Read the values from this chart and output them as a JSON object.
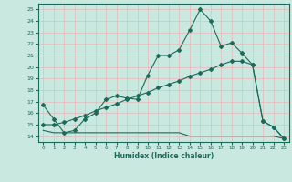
{
  "xlabel": "Humidex (Indice chaleur)",
  "xlim": [
    -0.5,
    23.5
  ],
  "ylim": [
    13.5,
    25.5
  ],
  "xticks": [
    0,
    1,
    2,
    3,
    4,
    5,
    6,
    7,
    8,
    9,
    10,
    11,
    12,
    13,
    14,
    15,
    16,
    17,
    18,
    19,
    20,
    21,
    22,
    23
  ],
  "yticks": [
    14,
    15,
    16,
    17,
    18,
    19,
    20,
    21,
    22,
    23,
    24,
    25
  ],
  "bg_color": "#c8e8e0",
  "grid_color": "#e8b8b8",
  "line_color": "#1a6b5a",
  "line1_x": [
    0,
    1,
    2,
    3,
    4,
    5,
    6,
    7,
    8,
    9,
    10,
    11,
    12,
    13,
    14,
    15,
    16,
    17,
    18,
    19,
    20,
    21,
    22,
    23
  ],
  "line1_y": [
    16.7,
    15.5,
    14.3,
    14.5,
    15.5,
    16.0,
    17.2,
    17.5,
    17.3,
    17.2,
    19.3,
    21.0,
    21.0,
    21.5,
    23.2,
    25.0,
    24.0,
    21.8,
    22.1,
    21.2,
    20.2,
    15.3,
    14.8,
    13.8
  ],
  "line2_x": [
    0,
    1,
    2,
    3,
    4,
    5,
    6,
    7,
    8,
    9,
    10,
    11,
    12,
    13,
    14,
    15,
    16,
    17,
    18,
    19,
    20,
    21,
    22,
    23
  ],
  "line2_y": [
    15.0,
    15.0,
    15.2,
    15.5,
    15.8,
    16.2,
    16.5,
    16.8,
    17.2,
    17.5,
    17.8,
    18.2,
    18.5,
    18.8,
    19.2,
    19.5,
    19.8,
    20.2,
    20.5,
    20.5,
    20.2,
    15.3,
    14.8,
    13.8
  ],
  "line3_x": [
    0,
    1,
    2,
    3,
    4,
    5,
    6,
    7,
    8,
    9,
    10,
    11,
    12,
    13,
    14,
    15,
    16,
    17,
    18,
    19,
    20,
    21,
    22,
    23
  ],
  "line3_y": [
    14.5,
    14.3,
    14.3,
    14.3,
    14.3,
    14.3,
    14.3,
    14.3,
    14.3,
    14.3,
    14.3,
    14.3,
    14.3,
    14.3,
    14.0,
    14.0,
    14.0,
    14.0,
    14.0,
    14.0,
    14.0,
    14.0,
    14.0,
    13.8
  ]
}
